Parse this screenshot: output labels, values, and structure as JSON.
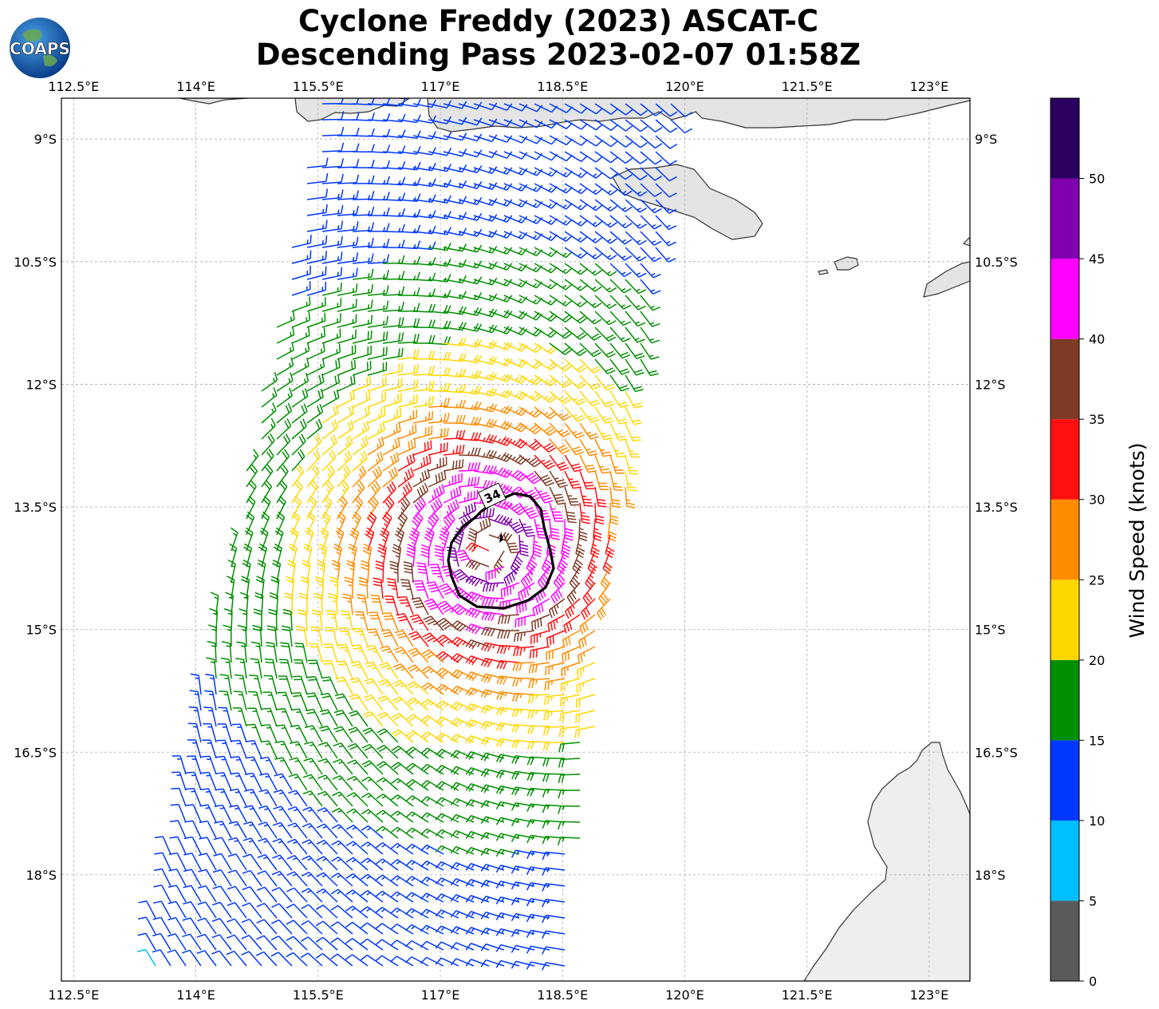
{
  "title": {
    "line1": "Cyclone Freddy (2023) ASCAT-C",
    "line2": "Descending Pass 2023-02-07 01:58Z"
  },
  "logo": {
    "text": "COAPS"
  },
  "map": {
    "lon_range": [
      112.35,
      123.5
    ],
    "lat_range": [
      -19.3,
      -8.5
    ],
    "lon_ticks": [
      112.5,
      114,
      115.5,
      117,
      118.5,
      120,
      121.5,
      123
    ],
    "lon_labels": [
      "112.5°E",
      "114°E",
      "115.5°E",
      "117°E",
      "118.5°E",
      "120°E",
      "121.5°E",
      "123°E"
    ],
    "lat_ticks": [
      -9,
      -10.5,
      -12,
      -13.5,
      -15,
      -16.5,
      -18
    ],
    "lat_labels": [
      "9°S",
      "10.5°S",
      "12°S",
      "13.5°S",
      "15°S",
      "16.5°S",
      "18°S"
    ],
    "storm_center": {
      "lon": 117.6,
      "lat": -14.0
    },
    "contour_label": "34",
    "contour_value_kt": 34
  },
  "colorbar": {
    "label": "Wind Speed (knots)",
    "bounds": [
      0,
      5,
      10,
      15,
      20,
      25,
      30,
      35,
      40,
      45,
      50,
      55
    ],
    "tick_labels": [
      "0",
      "5",
      "10",
      "15",
      "20",
      "25",
      "30",
      "35",
      "40",
      "45",
      "50"
    ],
    "colors": [
      "#5a5a5a",
      "#00bfff",
      "#0038ff",
      "#008f00",
      "#ffd700",
      "#ff8c00",
      "#ff1010",
      "#7f3b25",
      "#ff00ff",
      "#8000b0",
      "#2a0060"
    ]
  },
  "colors": {
    "coast": "#333333",
    "land": "#e6e6e6",
    "grid": "#aaaaaa"
  }
}
